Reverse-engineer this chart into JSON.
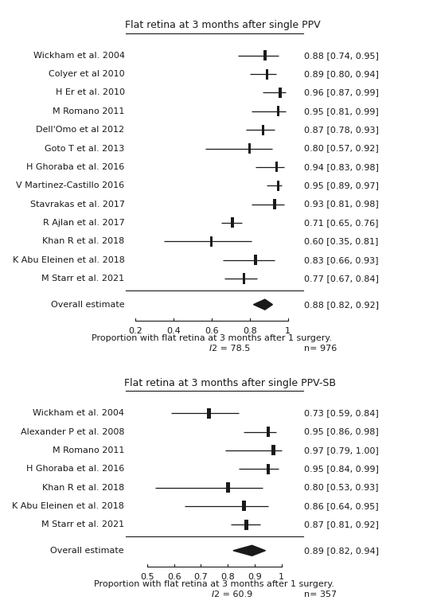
{
  "panel1": {
    "title": "Flat retina at 3 months after single PPV",
    "studies": [
      {
        "label": "Wickham et al. 2004",
        "est": 0.88,
        "lo": 0.74,
        "hi": 0.95,
        "text": "0.88 [0.74, 0.95]"
      },
      {
        "label": "Colyer et al 2010",
        "est": 0.89,
        "lo": 0.8,
        "hi": 0.94,
        "text": "0.89 [0.80, 0.94]"
      },
      {
        "label": "H Er et al. 2010",
        "est": 0.96,
        "lo": 0.87,
        "hi": 0.99,
        "text": "0.96 [0.87, 0.99]"
      },
      {
        "label": "M Romano 2011",
        "est": 0.95,
        "lo": 0.81,
        "hi": 0.99,
        "text": "0.95 [0.81, 0.99]"
      },
      {
        "label": "Dell'Omo et al 2012",
        "est": 0.87,
        "lo": 0.78,
        "hi": 0.93,
        "text": "0.87 [0.78, 0.93]"
      },
      {
        "label": "Goto T et al. 2013",
        "est": 0.8,
        "lo": 0.57,
        "hi": 0.92,
        "text": "0.80 [0.57, 0.92]"
      },
      {
        "label": "H Ghoraba et al. 2016",
        "est": 0.94,
        "lo": 0.83,
        "hi": 0.98,
        "text": "0.94 [0.83, 0.98]"
      },
      {
        "label": "V Martinez-Castillo 2016",
        "est": 0.95,
        "lo": 0.89,
        "hi": 0.97,
        "text": "0.95 [0.89, 0.97]"
      },
      {
        "label": "Stavrakas et al. 2017",
        "est": 0.93,
        "lo": 0.81,
        "hi": 0.98,
        "text": "0.93 [0.81, 0.98]"
      },
      {
        "label": "R Ajlan et al. 2017",
        "est": 0.71,
        "lo": 0.65,
        "hi": 0.76,
        "text": "0.71 [0.65, 0.76]"
      },
      {
        "label": "Khan R et al. 2018",
        "est": 0.6,
        "lo": 0.35,
        "hi": 0.81,
        "text": "0.60 [0.35, 0.81]"
      },
      {
        "label": "K Abu Eleinen et al. 2018",
        "est": 0.83,
        "lo": 0.66,
        "hi": 0.93,
        "text": "0.83 [0.66, 0.93]"
      },
      {
        "label": "M Starr et al. 2021",
        "est": 0.77,
        "lo": 0.67,
        "hi": 0.84,
        "text": "0.77 [0.67, 0.84]"
      }
    ],
    "overall": {
      "est": 0.88,
      "lo": 0.82,
      "hi": 0.92,
      "text": "0.88 [0.82, 0.92]"
    },
    "xlim": [
      0.15,
      1.08
    ],
    "xticks": [
      0.2,
      0.4,
      0.6,
      0.8,
      1.0
    ],
    "xtick_labels": [
      "0.2",
      "0.4",
      "0.6",
      "0.8",
      "1"
    ],
    "xlabel": "Proportion with flat retina at 3 months after 1 surgery.",
    "i2_normal": "I",
    "i2_super": "2",
    "i2_value": " = 78.5",
    "n": "n= 976"
  },
  "panel2": {
    "title": "Flat retina at 3 months after single PPV-SB",
    "studies": [
      {
        "label": "Wickham et al. 2004",
        "est": 0.73,
        "lo": 0.59,
        "hi": 0.84,
        "text": "0.73 [0.59, 0.84]"
      },
      {
        "label": "Alexander P et al. 2008",
        "est": 0.95,
        "lo": 0.86,
        "hi": 0.98,
        "text": "0.95 [0.86, 0.98]"
      },
      {
        "label": "M Romano 2011",
        "est": 0.97,
        "lo": 0.79,
        "hi": 1.0,
        "text": "0.97 [0.79, 1.00]"
      },
      {
        "label": "H Ghoraba et al. 2016",
        "est": 0.95,
        "lo": 0.84,
        "hi": 0.99,
        "text": "0.95 [0.84, 0.99]"
      },
      {
        "label": "Khan R et al. 2018",
        "est": 0.8,
        "lo": 0.53,
        "hi": 0.93,
        "text": "0.80 [0.53, 0.93]"
      },
      {
        "label": "K Abu Eleinen et al. 2018",
        "est": 0.86,
        "lo": 0.64,
        "hi": 0.95,
        "text": "0.86 [0.64, 0.95]"
      },
      {
        "label": "M Starr et al. 2021",
        "est": 0.87,
        "lo": 0.81,
        "hi": 0.92,
        "text": "0.87 [0.81, 0.92]"
      }
    ],
    "overall": {
      "est": 0.89,
      "lo": 0.82,
      "hi": 0.94,
      "text": "0.89 [0.82, 0.94]"
    },
    "xlim": [
      0.42,
      1.08
    ],
    "xticks": [
      0.5,
      0.6,
      0.7,
      0.8,
      0.9,
      1.0
    ],
    "xtick_labels": [
      "0.5",
      "0.6",
      "0.7",
      "0.8",
      "0.9",
      "1"
    ],
    "xlabel": "Proportion with flat retina at 3 months after 1 surgery.",
    "i2_normal": "I",
    "i2_super": "2",
    "i2_value": " = 60.9",
    "n": "n= 357"
  },
  "color_black": "#1a1a1a",
  "fontsize_title": 9,
  "fontsize_label": 8,
  "fontsize_est": 8,
  "fontsize_axis": 8,
  "fontsize_footer": 8
}
